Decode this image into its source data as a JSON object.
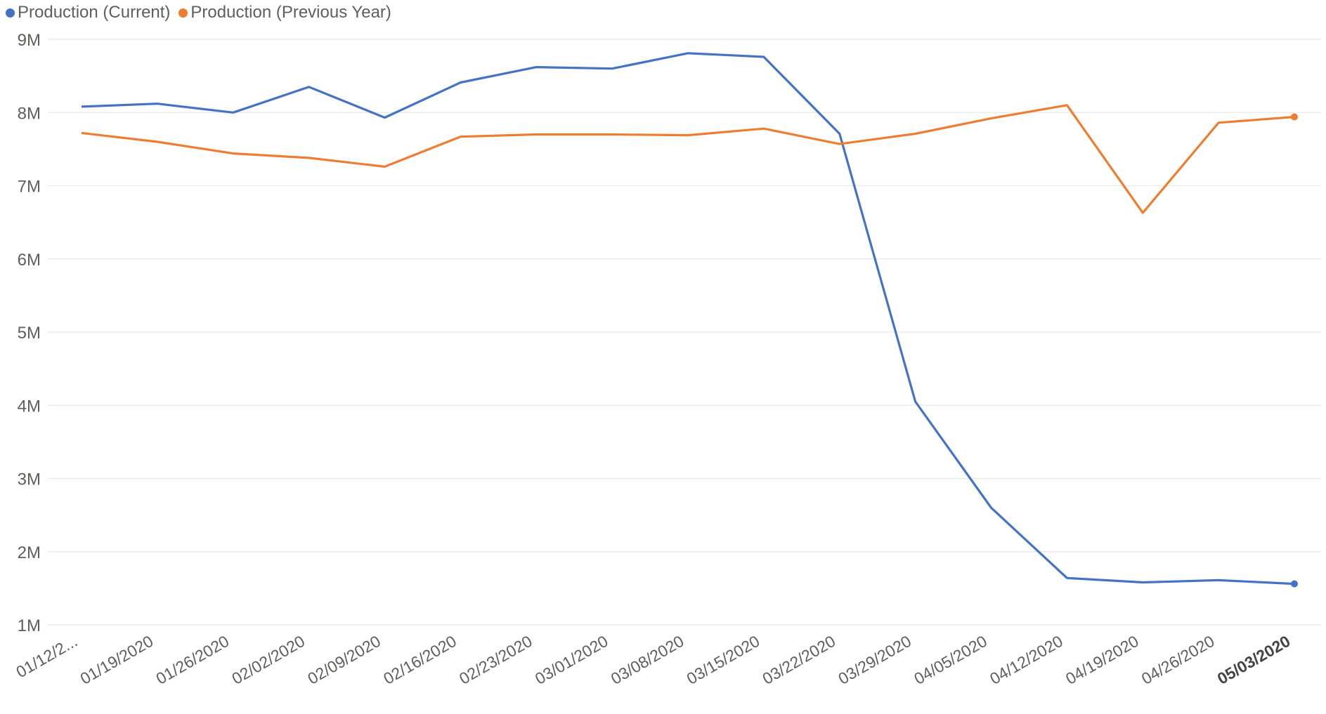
{
  "chart_data": {
    "type": "line",
    "x": [
      "01/12/2...",
      "01/19/2020",
      "01/26/2020",
      "02/02/2020",
      "02/09/2020",
      "02/16/2020",
      "02/23/2020",
      "03/01/2020",
      "03/08/2020",
      "03/15/2020",
      "03/22/2020",
      "03/29/2020",
      "04/05/2020",
      "04/12/2020",
      "04/19/2020",
      "04/26/2020",
      "05/03/2020"
    ],
    "highlighted_x": "05/03/2020",
    "series": [
      {
        "name": "Production (Current)",
        "color": "#4472C4",
        "values": [
          8080000,
          8120000,
          8000000,
          8350000,
          7930000,
          8410000,
          8620000,
          8600000,
          8810000,
          8760000,
          7710000,
          4050000,
          2600000,
          1640000,
          1580000,
          1610000,
          1560000
        ]
      },
      {
        "name": "Production (Previous Year)",
        "color": "#ED7D31",
        "values": [
          7720000,
          7600000,
          7440000,
          7380000,
          7260000,
          7670000,
          7700000,
          7700000,
          7690000,
          7780000,
          7570000,
          7710000,
          7920000,
          8100000,
          6630000,
          7860000,
          7940000
        ]
      }
    ],
    "yticks": [
      "9M",
      "8M",
      "7M",
      "6M",
      "5M",
      "4M",
      "3M",
      "2M",
      "1M"
    ],
    "ylim": [
      1000000,
      9000000
    ],
    "grid": true,
    "legend_position": "top-left"
  }
}
